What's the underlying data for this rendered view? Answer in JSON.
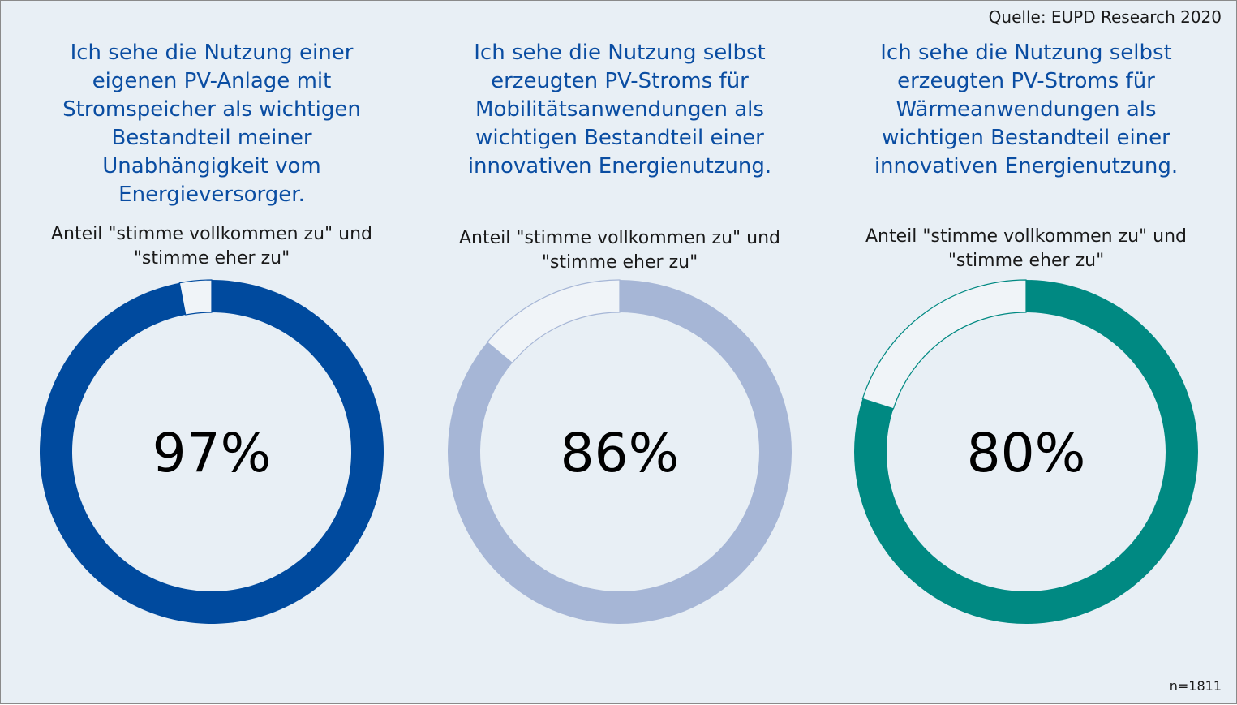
{
  "source": "Quelle: EUPD Research 2020",
  "sample_size": "n=1811",
  "chart_data": {
    "type": "donut",
    "title": "",
    "items": [
      {
        "question_lines": [
          "Ich sehe die Nutzung einer",
          "eigenen PV-Anlage mit",
          "Stromspeicher als wichtigen",
          "Bestandteil meiner",
          "Unabhängigkeit vom",
          "Energieversorger."
        ],
        "share_label_lines": [
          "Anteil \"stimme vollkommen zu\" und",
          "\"stimme eher zu\""
        ],
        "value": 97,
        "value_label": "97%",
        "color": "#004a9e"
      },
      {
        "question_lines": [
          "Ich sehe die Nutzung selbst",
          "erzeugten PV-Stroms für",
          "Mobilitätsanwendungen als",
          "wichtigen Bestandteil einer",
          "innovativen Energienutzung."
        ],
        "share_label_lines": [
          "Anteil \"stimme vollkommen zu\" und",
          "\"stimme eher zu\""
        ],
        "value": 86,
        "value_label": "86%",
        "color": "#a6b6d6"
      },
      {
        "question_lines": [
          "Ich sehe die Nutzung selbst",
          "erzeugten PV-Stroms für",
          "Wärmeanwendungen als",
          "wichtigen Bestandteil einer",
          "innovativen Energienutzung."
        ],
        "share_label_lines": [
          "Anteil \"stimme vollkommen zu\" und",
          "\"stimme eher zu\""
        ],
        "value": 80,
        "value_label": "80%",
        "color": "#008982"
      }
    ]
  }
}
